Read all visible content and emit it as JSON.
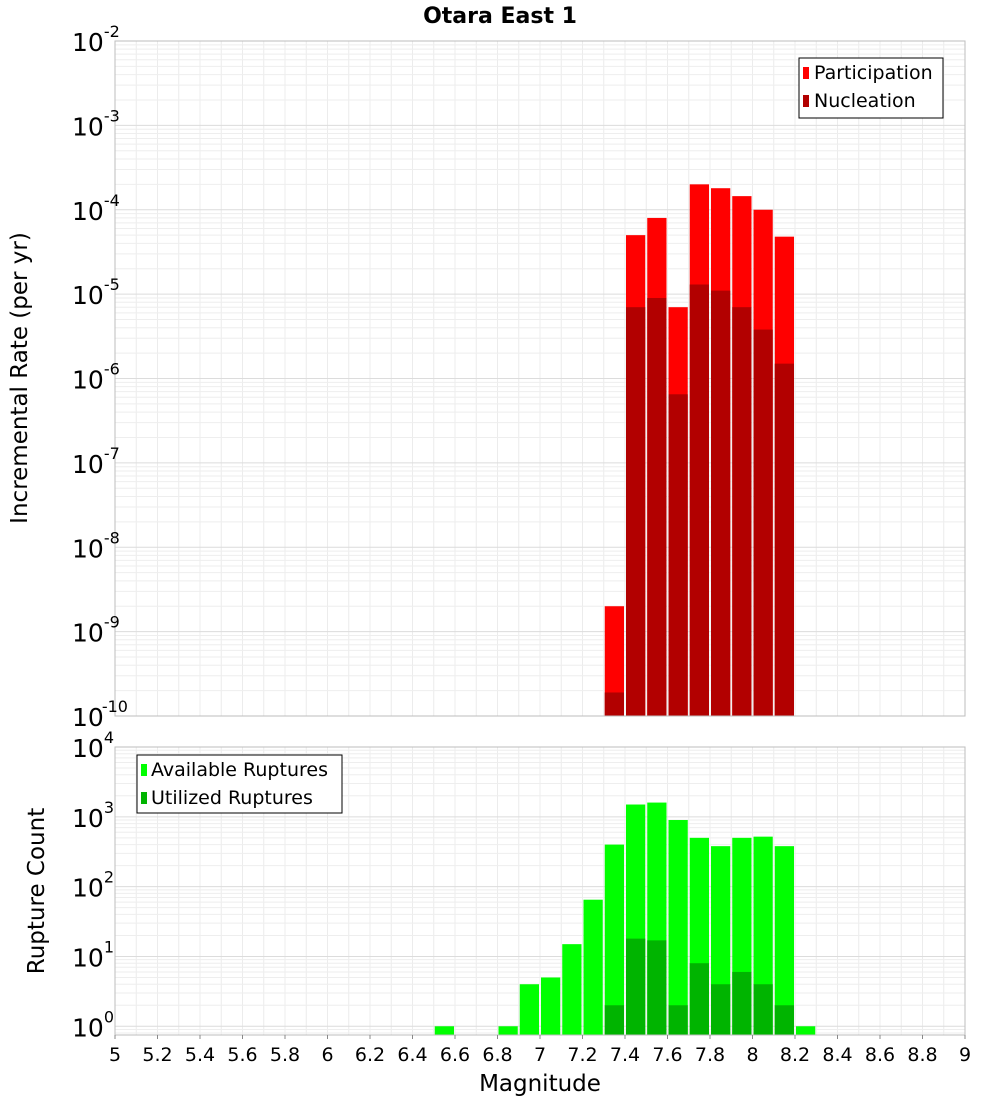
{
  "chart_data": [
    {
      "type": "bar",
      "title": "Otara East 1",
      "xlabel": "Magnitude",
      "ylabel": "Incremental Rate (per yr)",
      "y_scale": "log",
      "xlim": [
        5,
        9
      ],
      "ylim": [
        1e-10,
        0.01
      ],
      "grid": true,
      "legend_position": "top-right",
      "bin_width": 0.1,
      "y_tick_labels": [
        {
          "base": "10",
          "exp": "-10"
        },
        {
          "base": "10",
          "exp": "-9"
        },
        {
          "base": "10",
          "exp": "-8"
        },
        {
          "base": "10",
          "exp": "-7"
        },
        {
          "base": "10",
          "exp": "-6"
        },
        {
          "base": "10",
          "exp": "-5"
        },
        {
          "base": "10",
          "exp": "-4"
        },
        {
          "base": "10",
          "exp": "-3"
        },
        {
          "base": "10",
          "exp": "-2"
        }
      ],
      "series": [
        {
          "name": "Participation",
          "color": "#ff0000",
          "x": [
            7.35,
            7.45,
            7.55,
            7.65,
            7.75,
            7.85,
            7.95,
            8.05,
            8.15
          ],
          "values": [
            2e-09,
            5e-05,
            8e-05,
            7e-06,
            0.0002,
            0.00018,
            0.000145,
            0.0001,
            4.8e-05
          ]
        },
        {
          "name": "Nucleation",
          "color": "#b20000",
          "x": [
            7.35,
            7.45,
            7.55,
            7.65,
            7.75,
            7.85,
            7.95,
            8.05,
            8.15
          ],
          "values": [
            1.9e-10,
            7e-06,
            9e-06,
            6.5e-07,
            1.3e-05,
            1.1e-05,
            7e-06,
            3.8e-06,
            1.5e-06
          ]
        }
      ]
    },
    {
      "type": "bar",
      "xlabel": "Magnitude",
      "ylabel": "Rupture Count",
      "y_scale": "log",
      "xlim": [
        5,
        9
      ],
      "ylim": [
        0.75,
        10000.0
      ],
      "grid": true,
      "legend_position": "top-left",
      "bin_width": 0.1,
      "x_ticks": [
        "5",
        "5.2",
        "5.4",
        "5.6",
        "5.8",
        "6",
        "6.2",
        "6.4",
        "6.6",
        "6.8",
        "7",
        "7.2",
        "7.4",
        "7.6",
        "7.8",
        "8",
        "8.2",
        "8.4",
        "8.6",
        "8.8",
        "9"
      ],
      "y_tick_labels": [
        {
          "base": "10",
          "exp": "0"
        },
        {
          "base": "10",
          "exp": "1"
        },
        {
          "base": "10",
          "exp": "2"
        },
        {
          "base": "10",
          "exp": "3"
        },
        {
          "base": "10",
          "exp": "4"
        }
      ],
      "series": [
        {
          "name": "Available Ruptures",
          "color": "#00ff00",
          "x": [
            6.55,
            6.85,
            6.95,
            7.05,
            7.15,
            7.25,
            7.35,
            7.45,
            7.55,
            7.65,
            7.75,
            7.85,
            7.95,
            8.05,
            8.15,
            8.25
          ],
          "values": [
            1,
            1,
            4,
            5,
            15,
            65,
            400,
            1500,
            1600,
            900,
            500,
            380,
            500,
            520,
            380,
            1
          ]
        },
        {
          "name": "Utilized Ruptures",
          "color": "#00b400",
          "x": [
            7.35,
            7.45,
            7.55,
            7.65,
            7.75,
            7.85,
            7.95,
            8.05,
            8.15
          ],
          "values": [
            2,
            18,
            17,
            2,
            8,
            4,
            6,
            4,
            2
          ]
        }
      ]
    }
  ]
}
